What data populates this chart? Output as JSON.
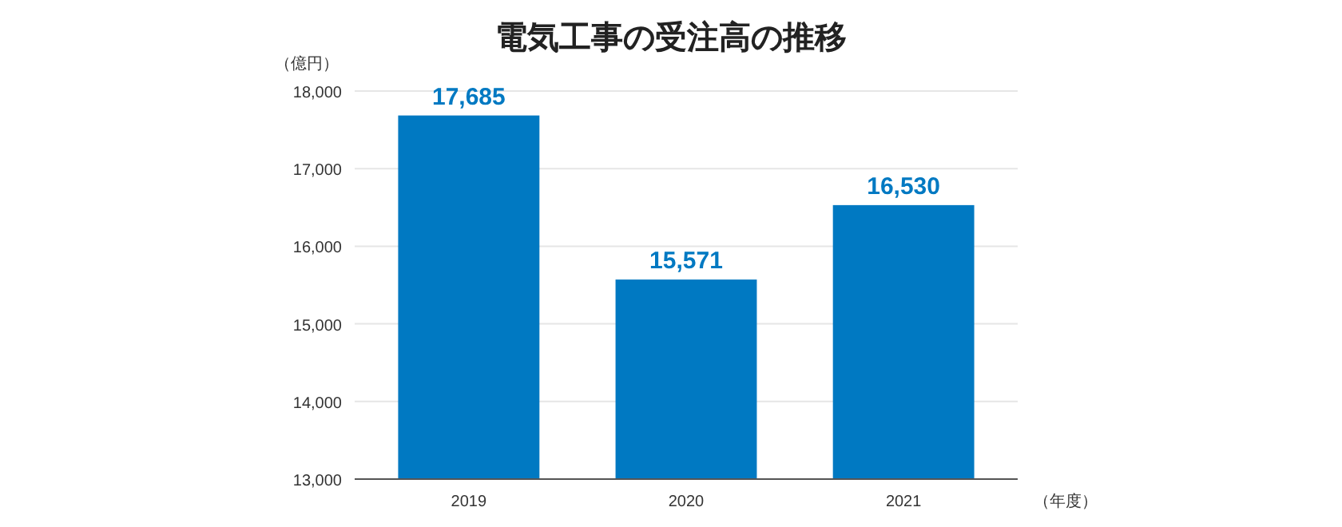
{
  "chart_data": {
    "type": "bar",
    "title": "電気工事の受注高の推移",
    "ylabel": "（億円）",
    "xlabel": "（年度）",
    "categories": [
      "2019",
      "2020",
      "2021"
    ],
    "values": [
      17685,
      15571,
      16530
    ],
    "color": "#0079c2",
    "ylim": [
      13000,
      18000
    ],
    "yticks": [
      {
        "value": 13000,
        "label": "13,000"
      },
      {
        "value": 14000,
        "label": "14,000"
      },
      {
        "value": 15000,
        "label": "15,000"
      },
      {
        "value": 16000,
        "label": "16,000"
      },
      {
        "value": 17000,
        "label": "17,000"
      },
      {
        "value": 18000,
        "label": "18,000"
      }
    ],
    "grid": "y",
    "value_labels": [
      "17,685",
      "15,571",
      "16,530"
    ]
  }
}
